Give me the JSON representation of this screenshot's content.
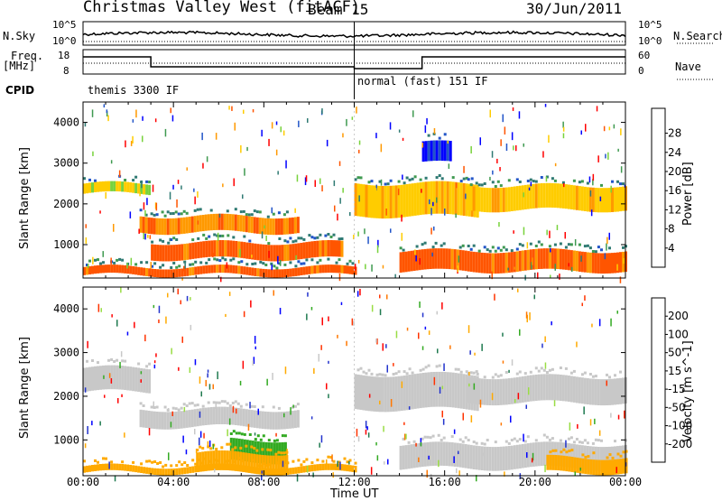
{
  "header": {
    "title": "Christmas Valley West (fitACF)",
    "beam": "Beam 15",
    "date": "30/Jun/2011"
  },
  "side_labels": {
    "nsky": "N.Sky",
    "nsky_ticks": [
      "10^5",
      "10^0"
    ],
    "nsearch": "N.Search",
    "nsearch_ticks": [
      "10^5",
      "10^0"
    ],
    "freq": "Freq.",
    "freq_unit": "[MHz]",
    "freq_ticks": [
      "18",
      "8"
    ],
    "nave": "Nave",
    "nave_ticks": [
      "60",
      "0"
    ],
    "cpid": "CPID"
  },
  "cpid_segments": [
    {
      "label": "themis 3300 IF",
      "start_h": 0,
      "end_h": 12
    },
    {
      "label": "normal (fast) 151 IF",
      "start_h": 12,
      "end_h": 24
    }
  ],
  "colors": {
    "power": [
      "#0000ff",
      "#2255c8",
      "#2f7a73",
      "#3f9a50",
      "#78d23c",
      "#ffcc00",
      "#ff9900",
      "#ff5500",
      "#ff0000"
    ],
    "velocity": [
      "#0000ff",
      "#2233cc",
      "#1f7a4f",
      "#33aa22",
      "#99dd44",
      "#c8c8c8",
      "#ffaa00",
      "#ff7700",
      "#ff3300",
      "#ff0000"
    ]
  },
  "chart_data": [
    {
      "type": "heatmap",
      "name": "power",
      "xlabel": "",
      "ylabel": "Slant Range [km]",
      "xlim": [
        0,
        24
      ],
      "ylim": [
        180,
        4500
      ],
      "yticks": [
        1000,
        2000,
        3000,
        4000
      ],
      "xticks": [
        "00:00",
        "04:00",
        "08:00",
        "12:00",
        "16:00",
        "20:00",
        "00:00"
      ],
      "colorbar_label": "Power [dB]",
      "colorbar_ticks": [
        4,
        8,
        12,
        16,
        20,
        24,
        28
      ],
      "bands": [
        {
          "t0": 0.0,
          "t1": 3.0,
          "r0": 2250,
          "r1": 2500,
          "value": 20
        },
        {
          "t0": 2.5,
          "t1": 9.5,
          "r0": 1300,
          "r1": 1700,
          "value": 26
        },
        {
          "t0": 3.0,
          "t1": 11.5,
          "r0": 650,
          "r1": 1050,
          "value": 28
        },
        {
          "t0": 0.0,
          "t1": 12.0,
          "r0": 250,
          "r1": 450,
          "value": 28
        },
        {
          "t0": 12.0,
          "t1": 17.5,
          "r0": 1700,
          "r1": 2500,
          "value": 22
        },
        {
          "t0": 17.0,
          "t1": 24.0,
          "r0": 1850,
          "r1": 2450,
          "value": 22
        },
        {
          "t0": 14.0,
          "t1": 24.0,
          "r0": 350,
          "r1": 850,
          "value": 28
        },
        {
          "t0": 15.0,
          "t1": 16.2,
          "r0": 3000,
          "r1": 3500,
          "value": 6
        }
      ]
    },
    {
      "type": "heatmap",
      "name": "velocity",
      "xlabel": "Time UT",
      "ylabel": "Slant Range [km]",
      "xlim": [
        0,
        24
      ],
      "ylim": [
        180,
        4500
      ],
      "yticks": [
        1000,
        2000,
        3000,
        4000
      ],
      "xticks": [
        "00:00",
        "04:00",
        "08:00",
        "12:00",
        "16:00",
        "20:00",
        "00:00"
      ],
      "colorbar_label": "Velocity [m s^-1]",
      "colorbar_ticks": [
        200,
        100,
        50,
        15,
        -15,
        -50,
        -100,
        -200
      ],
      "bands": [
        {
          "t0": 0.0,
          "t1": 3.0,
          "r0": 2100,
          "r1": 2650,
          "value": 0
        },
        {
          "t0": 2.5,
          "t1": 9.5,
          "r0": 1300,
          "r1": 1700,
          "value": 0
        },
        {
          "t0": 6.5,
          "t1": 9.0,
          "r0": 500,
          "r1": 1000,
          "value": 40
        },
        {
          "t0": 5.0,
          "t1": 9.0,
          "r0": 250,
          "r1": 700,
          "value": -40
        },
        {
          "t0": 0.0,
          "t1": 12.0,
          "r0": 250,
          "r1": 400,
          "value": -35
        },
        {
          "t0": 12.0,
          "t1": 17.5,
          "r0": 1700,
          "r1": 2500,
          "value": 0
        },
        {
          "t0": 17.0,
          "t1": 24.0,
          "r0": 1850,
          "r1": 2450,
          "value": 0
        },
        {
          "t0": 14.0,
          "t1": 24.0,
          "r0": 350,
          "r1": 900,
          "value": 0
        },
        {
          "t0": 20.5,
          "t1": 24.0,
          "r0": 250,
          "r1": 600,
          "value": -40
        }
      ]
    }
  ]
}
